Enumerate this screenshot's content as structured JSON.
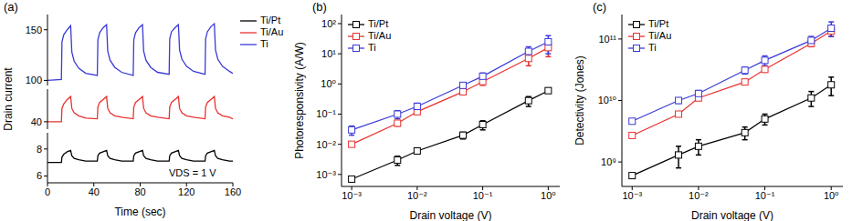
{
  "chart_data": [
    {
      "type": "line",
      "title": "(a)",
      "xlabel": "Time (sec)",
      "ylabel": "Drain current",
      "annotation": "VDS = 1 V",
      "legend": "right",
      "xlim": [
        0,
        160
      ],
      "xticks": [
        0,
        40,
        80,
        120,
        160
      ],
      "x": [
        0,
        12,
        12.5,
        14,
        17,
        20,
        21,
        23,
        27,
        33,
        43,
        43.5,
        45,
        48,
        51,
        52,
        54,
        58,
        64,
        74,
        74.5,
        76,
        79,
        82,
        83,
        85,
        89,
        95,
        105,
        105.5,
        107,
        110,
        113,
        114,
        116,
        120,
        126,
        136,
        136.5,
        138,
        141,
        144,
        145,
        147,
        151,
        157,
        160
      ],
      "series": [
        {
          "name": "Ti/Pt",
          "color": "#000000",
          "ylim": [
            5.5,
            9.2
          ],
          "yticks": [
            6,
            8
          ],
          "values": [
            7,
            7,
            7.4,
            7.6,
            7.8,
            7.9,
            7.5,
            7.3,
            7.2,
            7.1,
            7.1,
            7.5,
            7.7,
            7.8,
            7.9,
            7.5,
            7.3,
            7.2,
            7.1,
            7.1,
            7.5,
            7.7,
            7.8,
            7.9,
            7.5,
            7.3,
            7.2,
            7.1,
            7.1,
            7.5,
            7.7,
            7.8,
            7.9,
            7.5,
            7.3,
            7.2,
            7.1,
            7.1,
            7.5,
            7.7,
            7.8,
            7.9,
            7.5,
            7.3,
            7.2,
            7.1,
            7.1
          ]
        },
        {
          "name": "Ti/Au",
          "color": "#e8312f",
          "ylim": [
            35,
            62
          ],
          "yticks": [
            40
          ],
          "values": [
            40,
            40,
            49,
            52,
            55,
            57,
            49,
            46,
            44,
            42.5,
            42,
            50,
            53,
            55,
            57,
            49,
            46,
            44,
            43,
            42,
            50,
            53,
            55,
            57,
            49,
            46,
            44,
            43,
            42,
            50,
            53,
            55,
            57,
            49,
            46,
            44,
            43,
            42,
            50,
            53,
            55,
            57,
            49,
            46,
            44,
            43,
            42
          ]
        },
        {
          "name": "Ti",
          "color": "#3a3ad8",
          "ylim": [
            95,
            165
          ],
          "yticks": [
            100,
            150
          ],
          "values": [
            100,
            101,
            138,
            145,
            150,
            154,
            128,
            119,
            112,
            107,
            105,
            140,
            147,
            152,
            155,
            129,
            120,
            113,
            108,
            105,
            140,
            147,
            152,
            155,
            129,
            120,
            113,
            108,
            106,
            141,
            148,
            152,
            155,
            130,
            121,
            114,
            109,
            106,
            141,
            148,
            153,
            156,
            130,
            121,
            114,
            109,
            107
          ]
        }
      ]
    },
    {
      "type": "line",
      "title": "(b)",
      "xlabel": "Drain voltage (V)",
      "ylabel": "Photoresponsivity (A/W)",
      "log": true,
      "marker": "square",
      "legend": "upper left",
      "xlim": [
        0.0007,
        1.5
      ],
      "xticks": [
        {
          "value": 0.001,
          "label": "10⁻³"
        },
        {
          "value": 0.01,
          "label": "10⁻²"
        },
        {
          "value": 0.1,
          "label": "10⁻¹"
        },
        {
          "value": 1,
          "label": "10⁰"
        }
      ],
      "ylim": [
        0.0004,
        200
      ],
      "yticks": [
        {
          "value": 0.001,
          "label": "10⁻³"
        },
        {
          "value": 0.01,
          "label": "10⁻²"
        },
        {
          "value": 0.1,
          "label": "10⁻¹"
        },
        {
          "value": 1,
          "label": "10⁰"
        },
        {
          "value": 10,
          "label": "10¹"
        },
        {
          "value": 100,
          "label": "10²"
        }
      ],
      "x": [
        0.001,
        0.005,
        0.01,
        0.05,
        0.1,
        0.5,
        1
      ],
      "series": [
        {
          "name": "Ti/Pt",
          "color": "#000000",
          "values": [
            0.0007,
            0.003,
            0.006,
            0.02,
            0.045,
            0.28,
            0.6
          ],
          "errors": [
            0.0001,
            0.001,
            0.001,
            0.005,
            0.015,
            0.1,
            0.1
          ]
        },
        {
          "name": "Ti/Au",
          "color": "#e8312f",
          "values": [
            0.01,
            0.05,
            0.12,
            0.55,
            1.2,
            7,
            16
          ],
          "errors": [
            0.001,
            0.01,
            0.02,
            0.1,
            0.3,
            3,
            8
          ]
        },
        {
          "name": "Ti",
          "color": "#3a3ad8",
          "values": [
            0.03,
            0.1,
            0.18,
            0.9,
            1.8,
            12,
            25
          ],
          "errors": [
            0.01,
            0.03,
            0.05,
            0.2,
            0.5,
            5,
            15
          ]
        }
      ]
    },
    {
      "type": "line",
      "title": "(c)",
      "xlabel": "Drain voltage (V)",
      "ylabel": "Detectivity (Jones)",
      "log": true,
      "marker": "square",
      "legend": "upper left",
      "xlim": [
        0.0007,
        1.5
      ],
      "xticks": [
        {
          "value": 0.001,
          "label": "10⁻³"
        },
        {
          "value": 0.01,
          "label": "10⁻²"
        },
        {
          "value": 0.1,
          "label": "10⁻¹"
        },
        {
          "value": 1,
          "label": "10⁰"
        }
      ],
      "ylim": [
        400000000.0,
        250000000000.0
      ],
      "yticks": [
        {
          "value": 1000000000.0,
          "label": "10⁹"
        },
        {
          "value": 10000000000.0,
          "label": "10¹⁰"
        },
        {
          "value": 100000000000.0,
          "label": "10¹¹"
        }
      ],
      "x": [
        0.001,
        0.005,
        0.01,
        0.05,
        0.1,
        0.5,
        1
      ],
      "series": [
        {
          "name": "Ti/Pt",
          "color": "#000000",
          "values": [
            600000000.0,
            1300000000.0,
            1800000000.0,
            3000000000.0,
            5000000000.0,
            11000000000.0,
            18000000000.0
          ],
          "errors": [
            50000000.0,
            500000000.0,
            500000000.0,
            700000000.0,
            1000000000.0,
            3000000000.0,
            6000000000.0
          ]
        },
        {
          "name": "Ti/Au",
          "color": "#e8312f",
          "values": [
            2700000000.0,
            6000000000.0,
            11000000000.0,
            20000000000.0,
            32000000000.0,
            85000000000.0,
            135000000000.0
          ],
          "errors": [
            200000000.0,
            500000000.0,
            1000000000.0,
            2000000000.0,
            3000000000.0,
            10000000000.0,
            25000000000.0
          ]
        },
        {
          "name": "Ti",
          "color": "#3a3ad8",
          "values": [
            4600000000.0,
            10000000000.0,
            13000000000.0,
            31000000000.0,
            45000000000.0,
            95000000000.0,
            150000000000.0
          ],
          "errors": [
            300000000.0,
            1000000000.0,
            1500000000.0,
            4000000000.0,
            8000000000.0,
            15000000000.0,
            40000000000.0
          ]
        }
      ]
    }
  ]
}
